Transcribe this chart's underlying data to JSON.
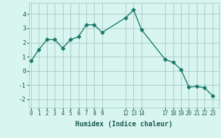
{
  "x": [
    0,
    1,
    2,
    3,
    4,
    5,
    6,
    7,
    8,
    9,
    12,
    13,
    14,
    17,
    18,
    19,
    20,
    21,
    22,
    23
  ],
  "y": [
    0.7,
    1.5,
    2.2,
    2.2,
    1.6,
    2.2,
    2.4,
    3.25,
    3.25,
    2.7,
    3.75,
    4.3,
    2.9,
    0.8,
    0.6,
    0.1,
    -1.15,
    -1.1,
    -1.2,
    -1.75
  ],
  "xticks": [
    0,
    1,
    2,
    3,
    4,
    5,
    6,
    7,
    8,
    9,
    12,
    13,
    14,
    17,
    18,
    19,
    20,
    21,
    22,
    23
  ],
  "yticks": [
    -2,
    -1,
    0,
    1,
    2,
    3,
    4
  ],
  "ylim": [
    -2.6,
    4.8
  ],
  "xlim": [
    -0.3,
    23.8
  ],
  "xlabel": "Humidex (Indice chaleur)",
  "line_color": "#1a7a6a",
  "marker": "D",
  "marker_size": 2.5,
  "line_width": 1.0,
  "bg_color": "#d8f5ef",
  "grid_color": "#aacfc8",
  "tick_color": "#1a5a50",
  "xlabel_fontsize": 7,
  "xtick_fontsize": 5.5,
  "ytick_fontsize": 6.5
}
